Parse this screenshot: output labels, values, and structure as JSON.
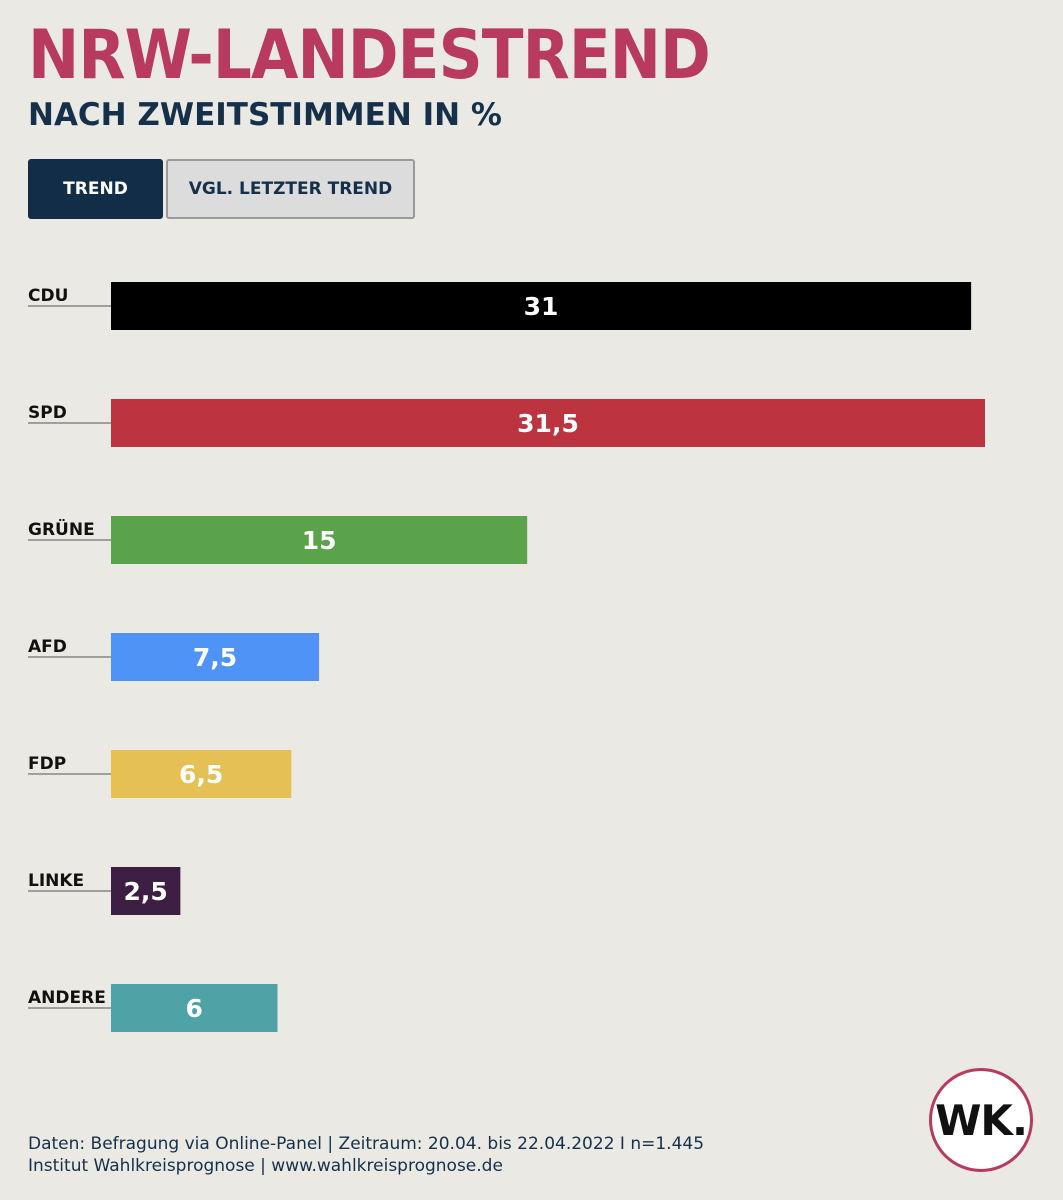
{
  "header": {
    "title": "NRW-LANDESTREND",
    "subtitle": "NACH ZWEITSTIMMEN IN %"
  },
  "tabs": {
    "trend_label": "TREND",
    "compare_label": "VGL. LETZTER TREND"
  },
  "colors": {
    "title": "#b83a5e",
    "subtitle": "#15304a",
    "background": "#ebe9e4"
  },
  "chart_data": {
    "type": "bar",
    "orientation": "horizontal",
    "title": "NRW-LANDESTREND",
    "subtitle": "NACH ZWEITSTIMMEN IN %",
    "categories": [
      "CDU",
      "SPD",
      "GRÜNE",
      "AFD",
      "FDP",
      "LINKE",
      "ANDERE"
    ],
    "values": [
      31,
      31.5,
      15,
      7.5,
      6.5,
      2.5,
      6
    ],
    "value_labels": [
      "31",
      "31,5",
      "15",
      "7,5",
      "6,5",
      "2,5",
      "6"
    ],
    "colors": [
      "#000000",
      "#bb343f",
      "#5aa34a",
      "#4e93f5",
      "#e5c155",
      "#3e1f44",
      "#4fa2a6"
    ],
    "xlim": [
      0,
      31.5
    ],
    "xlabel": "",
    "ylabel": "",
    "grid": false
  },
  "footer": {
    "line1": "Daten: Befragung via Online-Panel | Zeitraum: 20.04. bis 22.04.2022 I n=1.445",
    "line2": "Institut Wahlkreisprognose | www.wahlkreisprognose.de"
  },
  "logo": {
    "text": "WK."
  }
}
